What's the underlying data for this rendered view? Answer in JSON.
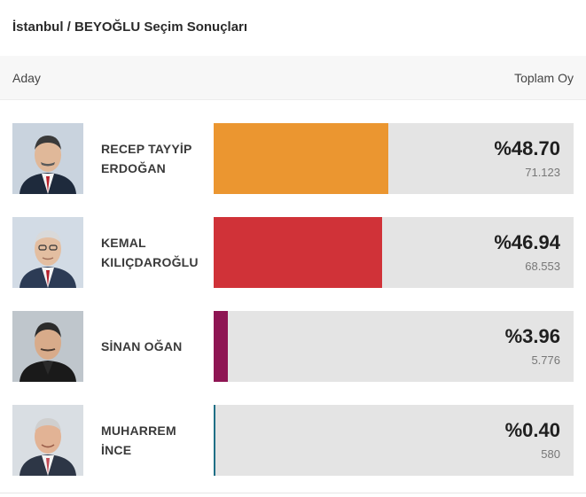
{
  "title": "İstanbul / BEYOĞLU Seçim Sonuçları",
  "header": {
    "left": "Aday",
    "right": "Toplam Oy"
  },
  "candidates": [
    {
      "name_line1": "RECEP TAYYİP",
      "name_line2": "ERDOĞAN",
      "percent_label": "%48.70",
      "percent": 48.7,
      "votes": "71.123",
      "color": "#eb9630"
    },
    {
      "name_line1": "KEMAL",
      "name_line2": "KILIÇDAROĞLU",
      "percent_label": "%46.94",
      "percent": 46.94,
      "votes": "68.553",
      "color": "#d03238"
    },
    {
      "name_line1": "SİNAN OĞAN",
      "name_line2": "",
      "percent_label": "%3.96",
      "percent": 3.96,
      "votes": "5.776",
      "color": "#8e1553"
    },
    {
      "name_line1": "MUHARREM",
      "name_line2": "İNCE",
      "percent_label": "%0.40",
      "percent": 0.4,
      "votes": "580",
      "color": "#1e6f86"
    }
  ]
}
